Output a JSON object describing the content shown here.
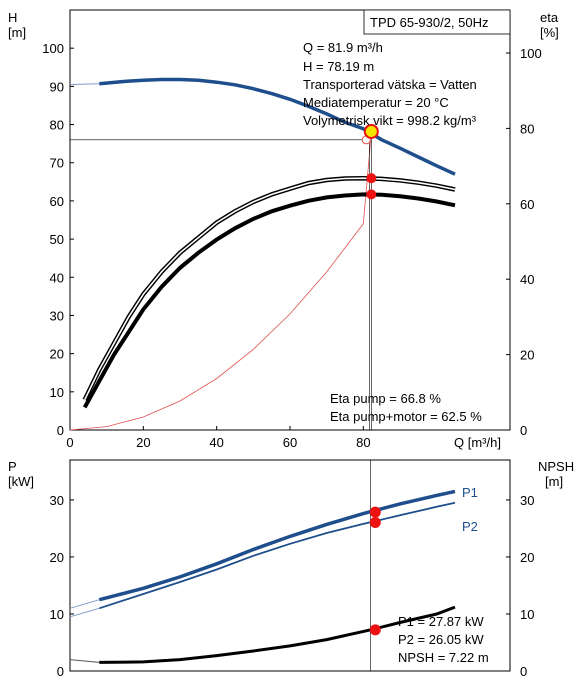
{
  "chart_data": [
    {
      "type": "line",
      "name": "pump-curves",
      "title": "TPD 65-930/2, 50Hz",
      "xlabel": "Q [m³/h]",
      "xlim": [
        0,
        120
      ],
      "x_ticks": [
        0,
        20,
        40,
        60,
        80
      ],
      "ylabel_left": [
        "H",
        "[m]"
      ],
      "ylim_left": [
        0,
        110
      ],
      "y_ticks_left": [
        0,
        10,
        20,
        30,
        40,
        50,
        60,
        70,
        80,
        90,
        100
      ],
      "ylabel_right": [
        "eta",
        "[%]"
      ],
      "ylim_right": [
        0,
        100
      ],
      "y_ticks_right": [
        0,
        20,
        40,
        60,
        80,
        100
      ],
      "grid": false,
      "series": [
        {
          "axis": "left",
          "color": "#1f4e8c",
          "x": [
            0,
            8,
            15,
            20,
            25,
            30,
            35,
            40,
            45,
            50,
            55,
            60,
            65,
            70,
            75,
            80,
            85,
            90,
            95,
            100,
            105
          ],
          "y": [
            90.5,
            90.7,
            91.3,
            91.6,
            91.8,
            91.8,
            91.6,
            91.1,
            90.4,
            89.4,
            88.1,
            86.6,
            84.8,
            82.8,
            80.6,
            78.9,
            76.0,
            73.8,
            71.5,
            69.2,
            67.0
          ]
        },
        {
          "axis": "left",
          "color": "#e05050",
          "x": [
            0,
            10,
            20,
            30,
            40,
            50,
            60,
            70,
            80,
            82
          ],
          "y": [
            0,
            0.9,
            3.4,
            7.6,
            13.5,
            21.1,
            30.4,
            41.4,
            54.0,
            76.0
          ]
        },
        {
          "axis": "right",
          "color": "#000000",
          "x": [
            4,
            8,
            12,
            16,
            20,
            25,
            30,
            35,
            40,
            45,
            50,
            55,
            60,
            65,
            70,
            75,
            80,
            85,
            90,
            95,
            100,
            105
          ],
          "y": [
            8,
            16,
            23,
            30,
            36,
            42,
            47,
            51,
            55,
            58,
            60.5,
            62.5,
            64,
            65.5,
            66.3,
            66.7,
            66.8,
            66.6,
            66.2,
            65.6,
            64.8,
            63.8
          ]
        },
        {
          "axis": "right",
          "color": "#000000",
          "x": [
            4,
            8,
            12,
            16,
            20,
            25,
            30,
            35,
            40,
            45,
            50,
            55,
            60,
            65,
            70,
            75,
            80,
            85,
            90,
            95,
            100,
            105
          ],
          "y": [
            6,
            13,
            20,
            26,
            32,
            38,
            43,
            47,
            50.5,
            53.5,
            56,
            58,
            59.5,
            60.8,
            61.7,
            62.2,
            62.5,
            62.4,
            62.0,
            61.4,
            60.6,
            59.6
          ]
        }
      ],
      "operating_point": {
        "Q": 81.9,
        "H": 78.19,
        "eta_pump": 66.8,
        "eta_pump_motor": 62.5
      },
      "info_lines": [
        "Q = 81.9 m³/h",
        "H = 78.19 m",
        "Transporterad vätska = Vatten",
        "Mediatemperatur = 20 °C",
        "Volymetrisk vikt = 998.2 kg/m³"
      ],
      "eta_lines": [
        "Eta pump = 66.8 %",
        "Eta pump+motor = 62.5 %"
      ]
    },
    {
      "type": "line",
      "name": "power-npsh",
      "xlim": [
        0,
        120
      ],
      "ylabel_left": [
        "P",
        "[kW]"
      ],
      "ylim_left": [
        0,
        37
      ],
      "y_ticks_left": [
        0,
        10,
        20,
        30
      ],
      "ylabel_right": [
        "NPSH",
        "[m]"
      ],
      "ylim_right": [
        0,
        37
      ],
      "y_ticks_right": [
        0,
        10,
        20,
        30
      ],
      "grid": false,
      "series": [
        {
          "name": "P1",
          "axis": "left",
          "color": "#1f4e8c",
          "x": [
            0,
            8,
            20,
            30,
            40,
            50,
            60,
            70,
            80,
            90,
            100,
            105
          ],
          "y": [
            11,
            12.5,
            14.5,
            16.5,
            18.8,
            21.3,
            23.6,
            25.7,
            27.6,
            29.3,
            30.8,
            31.5
          ]
        },
        {
          "name": "P2",
          "axis": "left",
          "color": "#1f4e8c",
          "x": [
            0,
            8,
            20,
            30,
            40,
            50,
            60,
            70,
            80,
            90,
            100,
            105
          ],
          "y": [
            9.5,
            11,
            13.5,
            15.6,
            17.8,
            20.2,
            22.3,
            24.2,
            25.8,
            27.3,
            28.8,
            29.5
          ]
        },
        {
          "axis": "right",
          "color": "#000000",
          "x": [
            0,
            8,
            20,
            30,
            40,
            50,
            60,
            70,
            82,
            90,
            100,
            105
          ],
          "y": [
            2.0,
            1.5,
            1.6,
            2.0,
            2.7,
            3.5,
            4.4,
            5.5,
            7.22,
            8.5,
            10.0,
            11.2
          ]
        }
      ],
      "operating_point": {
        "Q": 81.9,
        "P1": 27.87,
        "P2": 26.05,
        "NPSH": 7.22
      },
      "info_lines": [
        "P1 = 27.87 kW",
        "P2 = 26.05 kW",
        "NPSH = 7.22 m"
      ]
    }
  ]
}
